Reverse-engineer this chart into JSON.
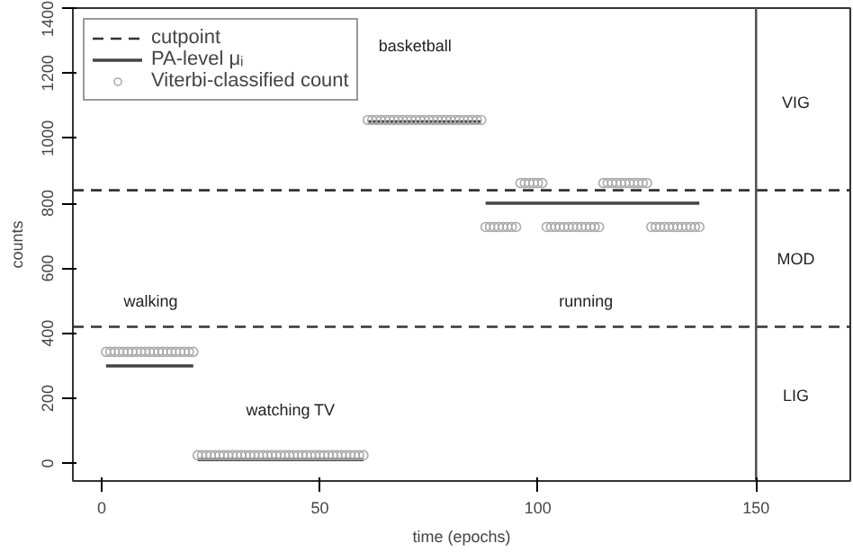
{
  "chart_data": {
    "type": "scatter",
    "xlabel": "time (epochs)",
    "ylabel": "counts",
    "xlim": [
      -6.6,
      171.6
    ],
    "ylim": [
      -54,
      1400
    ],
    "xticks": [
      0,
      50,
      100,
      150
    ],
    "yticks": [
      0,
      200,
      400,
      600,
      800,
      1000,
      1200,
      1400
    ],
    "grid": false,
    "legend": "top left",
    "series": [
      {
        "name": "PA-level μᵢ",
        "type": "line",
        "color": "#444444",
        "line_style": "solid",
        "marker": "none",
        "x": [
          1,
          21,
          21.5,
          22,
          60,
          60.5,
          61,
          87,
          87.5,
          88,
          137
        ],
        "values": [
          300,
          300,
          null,
          12,
          12,
          null,
          1050,
          1050,
          null,
          800,
          800
        ]
      },
      {
        "name": "Viterbi-classified count",
        "type": "scatter",
        "color": "#aaaaaa",
        "marker": "circle",
        "x": [
          1,
          2,
          3,
          4,
          5,
          6,
          7,
          8,
          9,
          10,
          11,
          12,
          13,
          14,
          15,
          16,
          17,
          18,
          19,
          20,
          21,
          22,
          23,
          24,
          25,
          26,
          27,
          28,
          29,
          30,
          31,
          32,
          33,
          34,
          35,
          36,
          37,
          38,
          39,
          40,
          41,
          42,
          43,
          44,
          45,
          46,
          47,
          48,
          49,
          50,
          51,
          52,
          53,
          54,
          55,
          56,
          57,
          58,
          59,
          60,
          61,
          62,
          63,
          64,
          65,
          66,
          67,
          68,
          69,
          70,
          71,
          72,
          73,
          74,
          75,
          76,
          77,
          78,
          79,
          80,
          81,
          82,
          83,
          84,
          85,
          86,
          87,
          88,
          89,
          90,
          91,
          92,
          93,
          94,
          95,
          96,
          97,
          98,
          99,
          100,
          101,
          102,
          103,
          104,
          105,
          106,
          107,
          108,
          109,
          110,
          111,
          112,
          113,
          114,
          115,
          116,
          117,
          118,
          119,
          120,
          121,
          122,
          123,
          124,
          125,
          126,
          127,
          128,
          129,
          130,
          131,
          132,
          133,
          134,
          135,
          136,
          137
        ],
        "values": [
          343,
          343,
          343,
          343,
          343,
          343,
          343,
          343,
          343,
          343,
          343,
          343,
          343,
          343,
          343,
          343,
          343,
          343,
          343,
          343,
          343,
          25,
          25,
          25,
          25,
          25,
          25,
          25,
          25,
          25,
          25,
          25,
          25,
          25,
          25,
          25,
          25,
          25,
          25,
          25,
          25,
          25,
          25,
          25,
          25,
          25,
          25,
          25,
          25,
          25,
          25,
          25,
          25,
          25,
          25,
          25,
          25,
          25,
          25,
          25,
          1056,
          1056,
          1056,
          1056,
          1056,
          1056,
          1056,
          1056,
          1056,
          1056,
          1056,
          1056,
          1056,
          1056,
          1056,
          1056,
          1056,
          1056,
          1056,
          1056,
          1056,
          1056,
          1056,
          1056,
          1056,
          1056,
          1056,
          727,
          727,
          727,
          727,
          727,
          727,
          727,
          727,
          862,
          862,
          862,
          862,
          862,
          862,
          727,
          727,
          727,
          727,
          727,
          727,
          727,
          727,
          727,
          727,
          727,
          727,
          727,
          862,
          862,
          862,
          862,
          862,
          862,
          862,
          862,
          862,
          862,
          862,
          727,
          727,
          727,
          727,
          727,
          727,
          727,
          727,
          727,
          727,
          727,
          727
        ]
      }
    ],
    "ref_lines": [
      {
        "axis": "y",
        "value": 840,
        "label": "cutpoint",
        "color": "#333333",
        "line_style": "dashed"
      },
      {
        "axis": "y",
        "value": 420,
        "color": "#333333",
        "line_style": "dashed"
      },
      {
        "axis": "x",
        "value": 150,
        "color": "#555555",
        "line_style": "solid"
      }
    ],
    "annotations": [
      "walking",
      "watching TV",
      "basketball",
      "running",
      "VIG",
      "MOD",
      "LIG"
    ]
  }
}
